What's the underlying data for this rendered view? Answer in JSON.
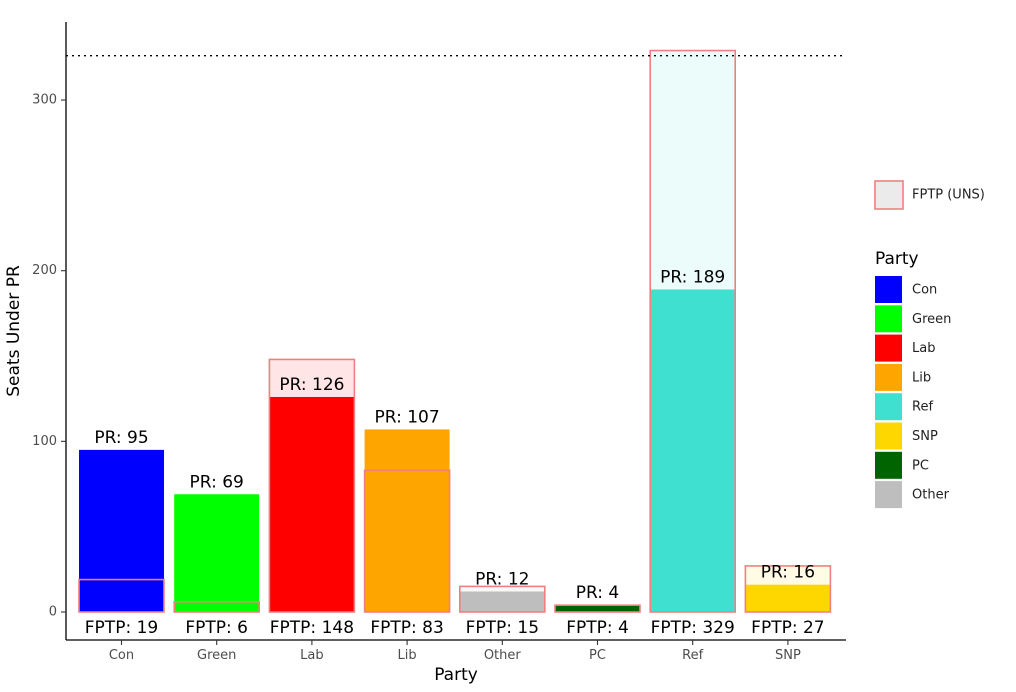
{
  "chart_data": {
    "type": "bar",
    "xlabel": "Party",
    "ylabel": "Seats Under PR",
    "ylim": [
      -16,
      345
    ],
    "yticks": [
      0,
      100,
      200,
      300
    ],
    "reference_line": 326,
    "categories": [
      "Con",
      "Green",
      "Lab",
      "Lib",
      "Other",
      "PC",
      "Ref",
      "SNP"
    ],
    "series": [
      {
        "name": "PR",
        "values": [
          95,
          69,
          126,
          107,
          12,
          4,
          189,
          16
        ]
      },
      {
        "name": "FPTP (UNS)",
        "values": [
          19,
          6,
          148,
          83,
          15,
          4,
          329,
          27
        ]
      }
    ],
    "pr_labels": [
      "PR: 95",
      "PR: 69",
      "PR: 126",
      "PR: 107",
      "PR: 12",
      "PR: 4",
      "PR: 189",
      "PR: 16"
    ],
    "fptp_labels": [
      "FPTP: 19",
      "FPTP: 6",
      "FPTP: 148",
      "FPTP: 83",
      "FPTP: 15",
      "FPTP: 4",
      "FPTP: 329",
      "FPTP: 27"
    ],
    "colors": {
      "Con": "#0000ff",
      "Green": "#00ff00",
      "Lab": "#ff0000",
      "Lib": "#ffa500",
      "Other": "#bebebe",
      "PC": "#006400",
      "Ref": "#40e0d0",
      "SNP": "#ffd700"
    },
    "fptp_outline_color": "#f08080",
    "legend": {
      "fptp_entry": "FPTP (UNS)",
      "title": "Party",
      "items": [
        "Con",
        "Green",
        "Lab",
        "Lib",
        "Ref",
        "SNP",
        "PC",
        "Other"
      ],
      "position": "right"
    },
    "grid": false
  }
}
